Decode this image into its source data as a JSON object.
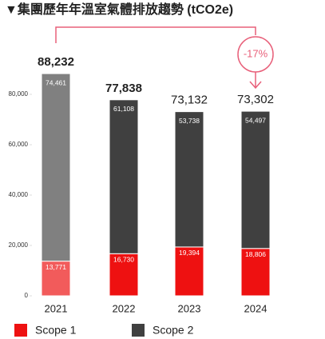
{
  "chart_data": {
    "type": "stacked-bar",
    "title": "▼集團歷年年溫室氣體排放趨勢 (tCO2e)",
    "categories": [
      "2021",
      "2022",
      "2023",
      "2024"
    ],
    "series": [
      {
        "name": "Scope 1",
        "color": "#ee1111",
        "colors": [
          "#f25b5b",
          "#ee1111",
          "#ee1111",
          "#ee1111"
        ],
        "values": [
          13771,
          16730,
          19394,
          18806
        ],
        "value_labels": [
          "13,771",
          "16,730",
          "19,394",
          "18,806"
        ]
      },
      {
        "name": "Scope 2",
        "color": "#404040",
        "colors": [
          "#808080",
          "#404040",
          "#404040",
          "#404040"
        ],
        "values": [
          74461,
          61108,
          53738,
          54497
        ],
        "value_labels": [
          "74,461",
          "61,108",
          "53,738",
          "54,497"
        ]
      }
    ],
    "total_labels": [
      "88,232",
      "77,838",
      "73,132",
      "73,302"
    ],
    "annotation": "-17%",
    "ylim": [
      0,
      90000
    ],
    "yticks": [
      0,
      {
        "value": 20000,
        "label": "20,000"
      },
      {
        "value": 40000,
        "label": "40,000"
      },
      {
        "value": 60000,
        "label": "60,000"
      },
      {
        "value": 80000,
        "label": "80,000"
      }
    ],
    "grid": false
  }
}
